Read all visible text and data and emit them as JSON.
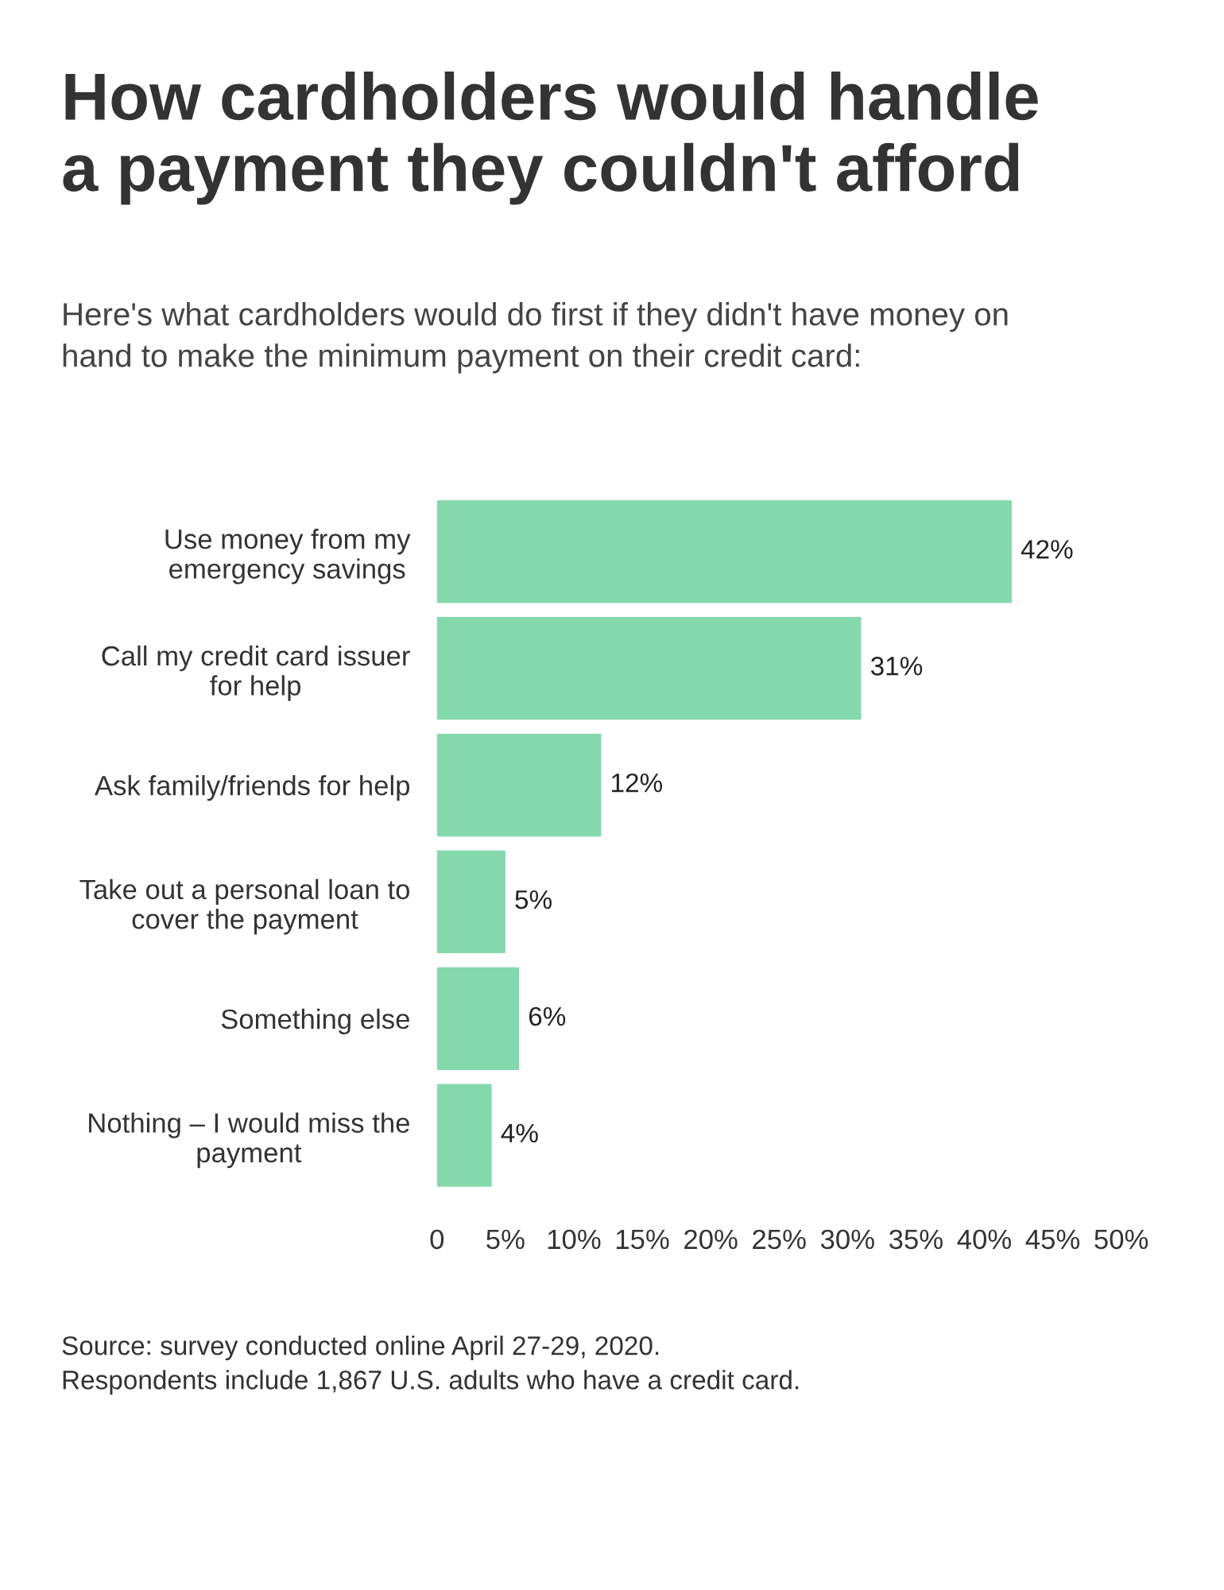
{
  "chart_data": {
    "type": "bar",
    "orientation": "horizontal",
    "title": "How cardholders would handle\na payment they couldn't afford",
    "subtitle": "Here's what cardholders would do first if they didn't have money on\nhand to make the minimum payment on their credit card:",
    "categories": [
      "Use money from my\nemergency savings",
      "Call my credit card issuer\nfor help",
      "Ask family/friends for help",
      "Take out a personal loan to\ncover the payment",
      "Something else",
      "Nothing – I would miss the\npayment"
    ],
    "values": [
      42,
      31,
      12,
      5,
      6,
      4
    ],
    "color": "#84d9ac",
    "data_labels": true,
    "value_labels": [
      "42%",
      "31%",
      "12%",
      "5%",
      "6%",
      "4%"
    ],
    "xlim": [
      0,
      50
    ],
    "xticks": [
      {
        "value": 0,
        "label": "0"
      },
      {
        "value": 5,
        "label": "5%"
      },
      {
        "value": 10,
        "label": "10%"
      },
      {
        "value": 15,
        "label": "15%"
      },
      {
        "value": 20,
        "label": "20%"
      },
      {
        "value": 25,
        "label": "25%"
      },
      {
        "value": 30,
        "label": "30%"
      },
      {
        "value": 35,
        "label": "35%"
      },
      {
        "value": 40,
        "label": "40%"
      },
      {
        "value": 45,
        "label": "45%"
      },
      {
        "value": 50,
        "label": "50%"
      }
    ],
    "grid": false,
    "legend": false,
    "annotations": [
      "Source: survey conducted online April 27-29, 2020.\nRespondents include 1,867 U.S. adults who have a credit card."
    ]
  }
}
